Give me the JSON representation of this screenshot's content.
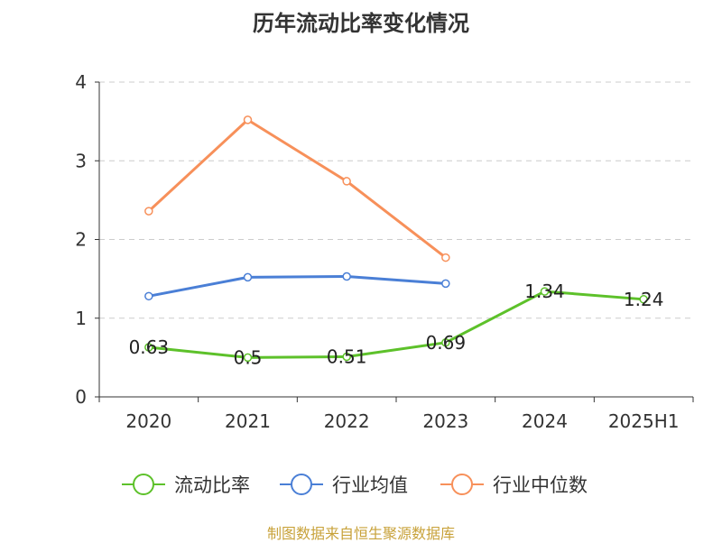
{
  "footer": "制图数据来自恒生聚源数据库",
  "chart_data": {
    "type": "line",
    "title": "历年流动比率变化情况",
    "categories": [
      "2020",
      "2021",
      "2022",
      "2023",
      "2024",
      "2025H1"
    ],
    "yticks": [
      "0",
      "1",
      "2",
      "3",
      "4"
    ],
    "ylim": [
      0,
      4
    ],
    "grid": true,
    "legend_position": "bottom",
    "series": [
      {
        "name": "流动比率",
        "color": "#5dc12a",
        "values": [
          0.63,
          0.5,
          0.51,
          0.69,
          1.34,
          1.24
        ],
        "labels": [
          "0.63",
          "0.5",
          "0.51",
          "0.69",
          "1.34",
          "1.24"
        ]
      },
      {
        "name": "行业均值",
        "color": "#4a7fd6",
        "values": [
          1.28,
          1.52,
          1.53,
          1.44,
          null,
          null
        ]
      },
      {
        "name": "行业中位数",
        "color": "#f7905a",
        "values": [
          2.36,
          3.52,
          2.74,
          1.77,
          null,
          null
        ]
      }
    ]
  }
}
